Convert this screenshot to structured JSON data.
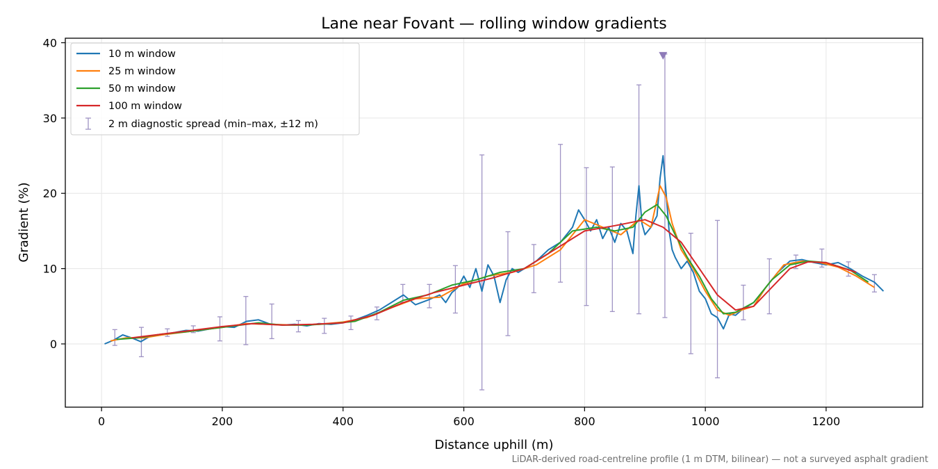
{
  "chart_data": {
    "type": "line",
    "title": "Lane near Fovant — rolling window gradients",
    "xlabel": "Distance uphill (m)",
    "ylabel": "Gradient (%)",
    "xlim": [
      -60,
      1360
    ],
    "ylim": [
      -8.4,
      40.6
    ],
    "xticks": [
      0,
      200,
      400,
      600,
      800,
      1000,
      1200
    ],
    "yticks": [
      0,
      10,
      20,
      30,
      40
    ],
    "grid": true,
    "legend_position": "top-left",
    "footnote": "LiDAR-derived road-centreline profile (1 m DTM, bilinear) — not a surveyed asphalt gradient",
    "series": [
      {
        "name": "10 m window",
        "color": "#1f77b4",
        "x": [
          5,
          20,
          35,
          50,
          65,
          80,
          100,
          120,
          140,
          160,
          180,
          200,
          220,
          240,
          260,
          280,
          300,
          320,
          340,
          360,
          380,
          400,
          420,
          440,
          460,
          480,
          500,
          520,
          540,
          560,
          570,
          580,
          590,
          600,
          610,
          620,
          630,
          640,
          650,
          660,
          670,
          680,
          690,
          700,
          720,
          740,
          760,
          780,
          790,
          800,
          810,
          820,
          830,
          840,
          850,
          860,
          870,
          880,
          885,
          890,
          895,
          900,
          910,
          920,
          925,
          930,
          935,
          940,
          945,
          950,
          960,
          970,
          980,
          990,
          1000,
          1010,
          1020,
          1030,
          1040,
          1050,
          1060,
          1080,
          1100,
          1120,
          1140,
          1160,
          1180,
          1200,
          1220,
          1240,
          1260,
          1280,
          1295
        ],
        "values": [
          0,
          0.5,
          1.2,
          0.8,
          0.3,
          1.0,
          1.2,
          1.5,
          1.8,
          1.7,
          2.0,
          2.3,
          2.2,
          3.0,
          3.2,
          2.6,
          2.5,
          2.6,
          2.4,
          2.7,
          2.6,
          2.8,
          3.2,
          3.8,
          4.5,
          5.5,
          6.5,
          5.2,
          5.8,
          6.5,
          5.5,
          6.8,
          7.5,
          9.0,
          7.5,
          10.0,
          7.0,
          10.5,
          9.0,
          5.5,
          8.5,
          10.0,
          9.5,
          10.0,
          11.0,
          12.5,
          13.5,
          15.5,
          17.8,
          16.5,
          15.0,
          16.5,
          14.0,
          15.5,
          13.5,
          16.0,
          15.0,
          12.0,
          17.0,
          21.0,
          16.0,
          14.5,
          15.5,
          17.0,
          22.0,
          25.0,
          20.0,
          15.0,
          12.5,
          11.5,
          10.0,
          11.0,
          9.5,
          7.0,
          6.0,
          4.0,
          3.5,
          2.0,
          4.0,
          3.8,
          4.5,
          5.5,
          7.5,
          9.5,
          11.0,
          11.2,
          10.8,
          10.5,
          10.8,
          10.0,
          9.0,
          8.2,
          7.0
        ]
      },
      {
        "name": "25 m window",
        "color": "#ff7f0e",
        "x": [
          15,
          40,
          70,
          100,
          130,
          160,
          200,
          240,
          280,
          320,
          360,
          400,
          440,
          480,
          520,
          560,
          600,
          640,
          680,
          720,
          760,
          800,
          830,
          860,
          890,
          910,
          925,
          935,
          945,
          960,
          980,
          1000,
          1020,
          1040,
          1060,
          1080,
          1100,
          1130,
          1160,
          1190,
          1220,
          1250,
          1280
        ],
        "values": [
          0.4,
          0.8,
          0.8,
          1.2,
          1.5,
          1.8,
          2.2,
          2.7,
          2.6,
          2.5,
          2.6,
          2.9,
          3.5,
          4.8,
          6.0,
          6.2,
          8.0,
          9.0,
          9.5,
          10.5,
          12.5,
          16.5,
          15.5,
          14.5,
          16.5,
          15.5,
          21.0,
          19.5,
          16.0,
          12.5,
          10.0,
          7.0,
          4.5,
          3.8,
          4.5,
          5.0,
          7.5,
          10.5,
          11.0,
          10.8,
          10.2,
          9.0,
          7.5
        ]
      },
      {
        "name": "50 m window",
        "color": "#2ca02c",
        "x": [
          25,
          60,
          100,
          140,
          180,
          220,
          260,
          300,
          340,
          380,
          420,
          460,
          500,
          540,
          580,
          620,
          660,
          700,
          740,
          780,
          820,
          850,
          880,
          900,
          920,
          935,
          950,
          970,
          990,
          1010,
          1030,
          1050,
          1080,
          1110,
          1140,
          1170,
          1200,
          1240,
          1270
        ],
        "values": [
          0.6,
          0.8,
          1.3,
          1.6,
          2.0,
          2.4,
          2.8,
          2.5,
          2.5,
          2.7,
          3.0,
          4.2,
          5.8,
          6.5,
          7.8,
          8.5,
          9.5,
          10.0,
          12.0,
          15.0,
          15.5,
          15.0,
          15.5,
          17.5,
          18.5,
          17.0,
          14.5,
          11.5,
          9.0,
          6.0,
          4.0,
          4.2,
          5.5,
          8.5,
          10.5,
          11.0,
          10.8,
          9.8,
          8.2
        ]
      },
      {
        "name": "100 m window",
        "color": "#d62728",
        "x": [
          50,
          100,
          150,
          200,
          250,
          300,
          350,
          400,
          450,
          500,
          550,
          600,
          650,
          700,
          750,
          800,
          850,
          900,
          930,
          960,
          990,
          1020,
          1050,
          1080,
          1110,
          1140,
          1170,
          1200,
          1250
        ],
        "values": [
          0.8,
          1.3,
          1.8,
          2.3,
          2.7,
          2.5,
          2.6,
          2.8,
          3.8,
          5.5,
          6.8,
          7.8,
          8.8,
          10.0,
          12.5,
          15.0,
          15.7,
          16.5,
          15.5,
          13.5,
          10.0,
          6.5,
          4.5,
          5.0,
          7.5,
          10.0,
          10.9,
          10.8,
          9.5
        ]
      }
    ],
    "error_bars": {
      "name": "2 m diagnostic spread (min–max, ±12 m)",
      "color": "#9f93c4",
      "points": [
        {
          "x": 22,
          "low": -0.2,
          "high": 1.9
        },
        {
          "x": 66,
          "low": -1.7,
          "high": 2.2
        },
        {
          "x": 109,
          "low": 1.0,
          "high": 2.0
        },
        {
          "x": 152,
          "low": 1.5,
          "high": 2.4
        },
        {
          "x": 196,
          "low": 0.4,
          "high": 3.6
        },
        {
          "x": 239,
          "low": -0.1,
          "high": 6.3
        },
        {
          "x": 282,
          "low": 0.7,
          "high": 5.3
        },
        {
          "x": 326,
          "low": 1.6,
          "high": 3.1
        },
        {
          "x": 369,
          "low": 1.4,
          "high": 3.4
        },
        {
          "x": 413,
          "low": 1.9,
          "high": 3.7
        },
        {
          "x": 456,
          "low": 3.2,
          "high": 4.9
        },
        {
          "x": 499,
          "low": 5.5,
          "high": 7.9
        },
        {
          "x": 543,
          "low": 4.8,
          "high": 7.9
        },
        {
          "x": 586,
          "low": 4.1,
          "high": 10.4
        },
        {
          "x": 630,
          "low": -6.1,
          "high": 25.1
        },
        {
          "x": 673,
          "low": 1.1,
          "high": 14.9
        },
        {
          "x": 716,
          "low": 6.8,
          "high": 13.2
        },
        {
          "x": 760,
          "low": 8.2,
          "high": 26.5
        },
        {
          "x": 803,
          "low": 5.1,
          "high": 23.4
        },
        {
          "x": 846,
          "low": 4.3,
          "high": 23.5
        },
        {
          "x": 890,
          "low": 4.0,
          "high": 34.4
        },
        {
          "x": 933,
          "low": 3.5,
          "high": 38.5
        },
        {
          "x": 976,
          "low": -1.3,
          "high": 14.7
        },
        {
          "x": 1020,
          "low": -4.5,
          "high": 16.4
        },
        {
          "x": 1063,
          "low": 3.2,
          "high": 7.8
        },
        {
          "x": 1106,
          "low": 4.0,
          "high": 11.3
        },
        {
          "x": 1150,
          "low": 10.0,
          "high": 11.8
        },
        {
          "x": 1193,
          "low": 10.2,
          "high": 12.6
        },
        {
          "x": 1237,
          "low": 9.0,
          "high": 10.9
        },
        {
          "x": 1280,
          "low": 6.9,
          "high": 9.2
        }
      ],
      "clipped_marker": {
        "x": 930,
        "y": 38.3,
        "note": "spread exceeds axis"
      }
    }
  }
}
